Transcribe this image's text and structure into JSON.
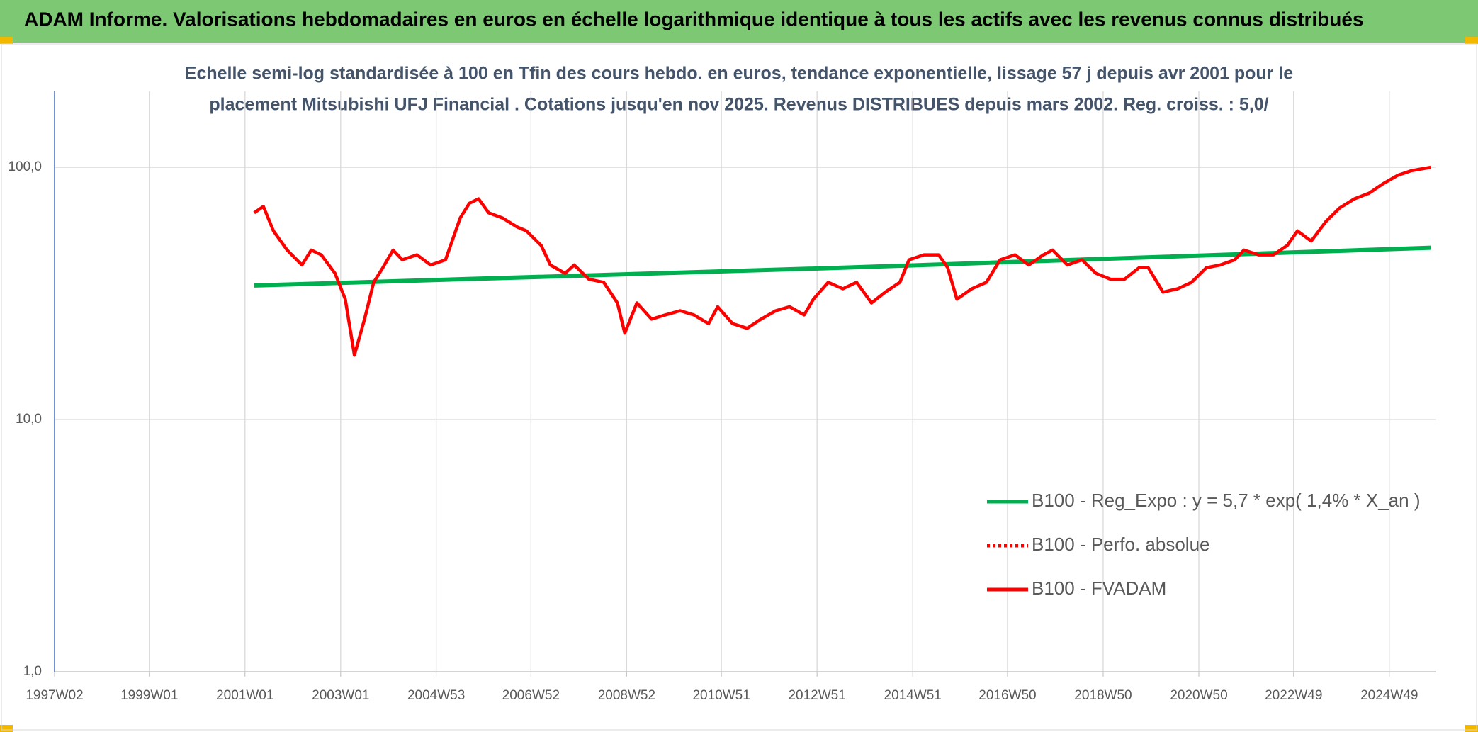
{
  "chart_data": {
    "type": "line",
    "header": "ADAM Informe. Valorisations hebdomadaires en euros en échelle logarithmique identique à tous les actifs avec les revenus connus distribués",
    "title": "Echelle semi-log standardisée à 100 en Tfin des cours hebdo. en euros, tendance exponentielle, lissage 57 j depuis avr 2001 pour le",
    "subtitle": "placement Mitsubishi UFJ Financial . Cotations jusqu'en nov 2025. Revenus DISTRIBUES depuis mars 2002. Reg. croiss. : 5,0/",
    "log_y": true,
    "grid": true,
    "legend": "lower right",
    "xlim": [
      "1997W02",
      "2025W48"
    ],
    "xticks": [
      "1997W02",
      "1999W01",
      "2001W01",
      "2003W01",
      "2004W53",
      "2006W52",
      "2008W52",
      "2010W51",
      "2012W51",
      "2014W51",
      "2016W50",
      "2018W50",
      "2020W50",
      "2022W49",
      "2024W49"
    ],
    "ylim": [
      1,
      200
    ],
    "yticks": [
      {
        "value": 1,
        "label": "1,0"
      },
      {
        "value": 10,
        "label": "10,0"
      },
      {
        "value": 100,
        "label": "100,0"
      }
    ],
    "series": [
      {
        "name": "B100 - Reg_Expo : y = 5,7 * exp( 1,4% *  X_an )",
        "color": "#00b050",
        "style": "solid",
        "x": [
          "2001W11",
          "2013W27",
          "2025W42"
        ],
        "values": [
          34,
          40,
          48
        ]
      },
      {
        "name": "B100 - Perfo. absolue",
        "color": "#ff0000",
        "style": "dotted",
        "x": [],
        "values": []
      },
      {
        "name": "B100 - FVADAM",
        "color": "#ff0000",
        "style": "solid",
        "x": [
          "2001W11",
          "2001W21",
          "2001W32",
          "2001W47",
          "2002W11",
          "2002W21",
          "2002W32",
          "2002W47",
          "2003W06",
          "2003W16",
          "2003W27",
          "2003W37",
          "2003W47",
          "2004W06",
          "2004W16",
          "2004W32",
          "2004W47",
          "2005W11",
          "2005W27",
          "2005W37",
          "2005W47",
          "2006W06",
          "2006W21",
          "2006W37",
          "2006W47",
          "2007W11",
          "2007W21",
          "2007W37",
          "2007W47",
          "2008W11",
          "2008W27",
          "2008W42",
          "2008W50",
          "2009W11",
          "2009W27",
          "2009W42",
          "2010W06",
          "2010W21",
          "2010W37",
          "2010W47",
          "2011W11",
          "2011W27",
          "2011W42",
          "2012W06",
          "2012W21",
          "2012W37",
          "2012W47",
          "2013W11",
          "2013W27",
          "2013W42",
          "2014W06",
          "2014W21",
          "2014W37",
          "2014W47",
          "2015W11",
          "2015W27",
          "2015W37",
          "2015W47",
          "2016W11",
          "2016W27",
          "2016W42",
          "2017W06",
          "2017W21",
          "2017W37",
          "2017W47",
          "2018W11",
          "2018W27",
          "2018W42",
          "2019W06",
          "2019W21",
          "2019W37",
          "2019W47",
          "2020W11",
          "2020W27",
          "2020W42",
          "2021W06",
          "2021W21",
          "2021W37",
          "2021W47",
          "2022W11",
          "2022W27",
          "2022W42",
          "2023W01",
          "2023W16",
          "2023W32",
          "2023W47",
          "2024W11",
          "2024W27",
          "2024W42",
          "2025W06",
          "2025W21",
          "2025W42"
        ],
        "values": [
          66,
          70,
          56,
          47,
          41,
          47,
          45,
          38,
          30,
          18,
          25,
          35,
          40,
          47,
          43,
          45,
          41,
          43,
          63,
          72,
          75,
          66,
          63,
          58,
          56,
          49,
          41,
          38,
          41,
          36,
          35,
          29,
          22,
          29,
          25,
          26,
          27,
          26,
          24,
          28,
          24,
          23,
          25,
          27,
          28,
          26,
          30,
          35,
          33,
          35,
          29,
          32,
          35,
          43,
          45,
          45,
          40,
          30,
          33,
          35,
          43,
          45,
          41,
          45,
          47,
          41,
          43,
          38,
          36,
          36,
          40,
          40,
          32,
          33,
          35,
          40,
          41,
          43,
          47,
          45,
          45,
          49,
          56,
          51,
          61,
          69,
          75,
          79,
          86,
          93,
          97,
          100
        ]
      }
    ]
  }
}
